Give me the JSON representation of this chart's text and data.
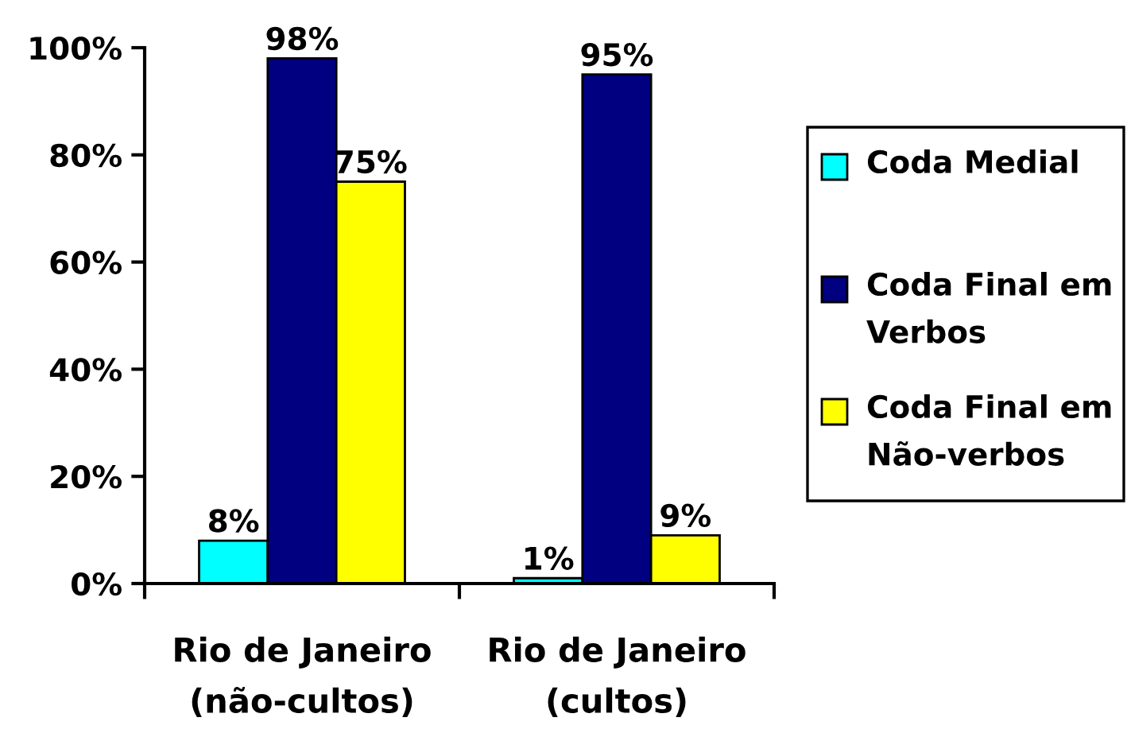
{
  "chart_data": {
    "type": "bar",
    "categories": [
      "Rio de Janeiro\n(não-cultos)",
      "Rio de Janeiro\n(cultos)"
    ],
    "series": [
      {
        "name": "Coda Medial",
        "color": "#00ffff",
        "values": [
          8,
          1
        ],
        "value_labels": [
          "8%",
          "1%"
        ]
      },
      {
        "name": "Coda Final em Verbos",
        "color": "#000080",
        "values": [
          98,
          95
        ],
        "value_labels": [
          "98%",
          "95%"
        ]
      },
      {
        "name": "Coda Final em Não-verbos",
        "color": "#ffff00",
        "values": [
          75,
          9
        ],
        "value_labels": [
          "75%",
          "9%"
        ]
      }
    ],
    "ylim": [
      0,
      100
    ],
    "yticks": [
      {
        "value": 0,
        "label": "0%"
      },
      {
        "value": 20,
        "label": "20%"
      },
      {
        "value": 40,
        "label": "40%"
      },
      {
        "value": 60,
        "label": "60%"
      },
      {
        "value": 80,
        "label": "80%"
      },
      {
        "value": 100,
        "label": "100%"
      }
    ],
    "legend": "right"
  }
}
